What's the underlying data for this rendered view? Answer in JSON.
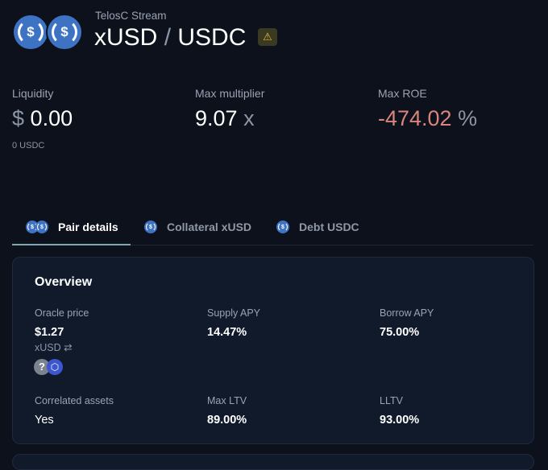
{
  "header": {
    "subtitle": "TelosC Stream",
    "collateral": "xUSD",
    "separator": "/",
    "debt": "USDC",
    "warning_icon": "warning-icon"
  },
  "stats": {
    "liquidity": {
      "label": "Liquidity",
      "prefix": "$",
      "value": "0.00",
      "sub": "0 USDC"
    },
    "max_multiplier": {
      "label": "Max multiplier",
      "value": "9.07",
      "suffix": "x"
    },
    "max_roe": {
      "label": "Max ROE",
      "value": "-474.02",
      "suffix": "%",
      "color": "#d9857d"
    }
  },
  "tabs": [
    {
      "label": "Pair details",
      "active": true
    },
    {
      "label": "Collateral xUSD"
    },
    {
      "label": "Debt USDC"
    }
  ],
  "overview": {
    "title": "Overview",
    "oracle_price": {
      "label": "Oracle price",
      "value": "$1.27",
      "unit": "xUSD",
      "swap_icon": "⇄"
    },
    "supply_apy": {
      "label": "Supply APY",
      "value": "14.47%"
    },
    "borrow_apy": {
      "label": "Borrow APY",
      "value": "75.00%"
    },
    "correlated": {
      "label": "Correlated assets",
      "value": "Yes"
    },
    "max_ltv": {
      "label": "Max LTV",
      "value": "89.00%"
    },
    "lltv": {
      "label": "LLTV",
      "value": "93.00%"
    },
    "oracle_sources": [
      "?",
      "chainlink"
    ]
  }
}
